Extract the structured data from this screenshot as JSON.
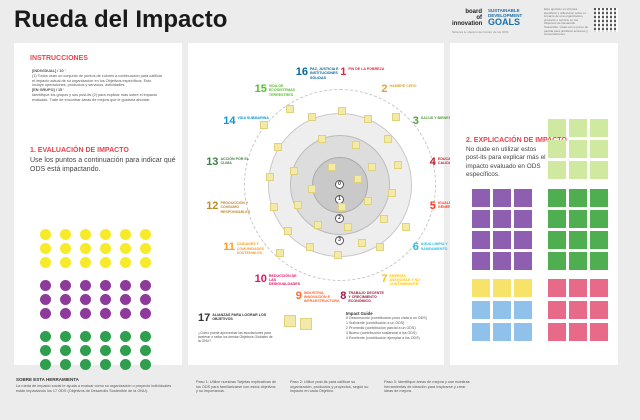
{
  "header": {
    "title": "Rueda del Impacto",
    "logo_board": [
      "board",
      "of",
      "innovation"
    ],
    "logo_sdg": [
      "SUSTAINABLE",
      "DEVELOPMENT",
      "GOALS"
    ],
    "caption": "Sintonía tu objetivo del Centro de los ODS",
    "description": "Este ejercicio es útil para identificar y reflexionar sobre el impacto de una organización, producto o servicio en los Objetivos de Desarrollo Sostenible. Úsalo como punto de partida para planificar acciones y conversaciones."
  },
  "left": {
    "instructions_title": "INSTRUCCIONES",
    "individual_label": "[INDIVIDUAL] / 10 '",
    "individual_text": "(1) Todos usan un conjunto de puntos de colores a continuación para calificar el impacto actual de su organización en los Objetivos específicos. Esto incluye operaciones, productos y servicios, actividades.",
    "group_label": "[EN GRUPO] / 15 '",
    "group_text": "Identifique los grupos y sus post-its (2) para explicar más sobre el impacto evaluado. Trate de encontrar áreas de mejora que le gustaría abordar.",
    "eval_title": "1. EVALUACIÓN DE IMPACTO",
    "eval_text": "Use los puntos a continuación para indicar qué ODS está impactando.",
    "dots": [
      {
        "color": "#f7ea2b",
        "rows": 3
      },
      {
        "color": "#8e3a9c",
        "rows": 3
      },
      {
        "color": "#2f9e4f",
        "rows": 3
      }
    ]
  },
  "wheel": {
    "sdgs": [
      {
        "n": "1",
        "label": "FIN DE LA POBREZA",
        "color": "#e5243b"
      },
      {
        "n": "2",
        "label": "HAMBRE CERO",
        "color": "#dda63a"
      },
      {
        "n": "3",
        "label": "SALUD Y BIENESTAR",
        "color": "#4c9f38"
      },
      {
        "n": "4",
        "label": "EDUCACIÓN DE CALIDAD",
        "color": "#c5192d"
      },
      {
        "n": "5",
        "label": "IGUALDAD DE GÉNERO",
        "color": "#ff3a21"
      },
      {
        "n": "6",
        "label": "AGUA LIMPIA Y SANEAMIENTO",
        "color": "#26bde2"
      },
      {
        "n": "7",
        "label": "ENERGÍA ASEQUIBLE Y NO CONTAMINANTE",
        "color": "#fcc30b"
      },
      {
        "n": "8",
        "label": "TRABAJO DECENTE Y CRECIMIENTO ECONÓMICO",
        "color": "#a21942"
      },
      {
        "n": "9",
        "label": "INDUSTRIA, INNOVACIÓN E INFRAESTRUCTURA",
        "color": "#fd6925"
      },
      {
        "n": "10",
        "label": "REDUCCIÓN DE LAS DESIGUALDADES",
        "color": "#dd1367"
      },
      {
        "n": "11",
        "label": "CIUDADES Y COMUNIDADES SOSTENIBLES",
        "color": "#fd9d24"
      },
      {
        "n": "12",
        "label": "PRODUCCIÓN Y CONSUMO RESPONSABLES",
        "color": "#bf8b2e"
      },
      {
        "n": "13",
        "label": "ACCIÓN POR EL CLIMA",
        "color": "#3f7e44"
      },
      {
        "n": "14",
        "label": "VIDA SUBMARINA",
        "color": "#0a97d9"
      },
      {
        "n": "15",
        "label": "VIDA DE ECOSISTEMAS TERRESTRES",
        "color": "#56c02b"
      },
      {
        "n": "16",
        "label": "PAZ, JUSTICIA E INSTITUCIONES SÓLIDAS",
        "color": "#00689d"
      }
    ],
    "sdg17": {
      "n": "17",
      "label": "ALIANZAS PARA LOGRAR LOS OBJETIVOS",
      "color": "#19486a",
      "note": "¿Cómo puede aprovechar las asociaciones para acelerar o sellar los demás Objetivos Globales de la ONU?"
    },
    "levels": [
      "0",
      "1",
      "2",
      "3"
    ],
    "guide_title": "Impact Guide",
    "guide": [
      "0 Desconocido (contribución poco clara a un ODS)",
      "1 Suficiente (contribución a un ODS)",
      "2 Promedio (contribución parcial a un ODS)",
      "3 Bueno (contribución sustancial a los ODS)",
      "4 Excelente (contribución ejemplar a los ODS)"
    ]
  },
  "right": {
    "explain_title": "2. EXPLICACIÓN DE IMPACTO",
    "explain_text": "No dude en utilizar estos post-its para explicar más el impacto evaluado en ODS específicos.",
    "notes": [
      {
        "color": "#cfe9a0",
        "rows": 2
      },
      {
        "color": "#8e5fb0",
        "rows": 3
      },
      {
        "color": "#4fae4f",
        "rows": 2
      },
      {
        "color": "#e76b88",
        "rows": 2
      },
      {
        "color": "#f7e36a",
        "rows": 1
      },
      {
        "color": "#8fc1ea",
        "rows": 1
      }
    ]
  },
  "footer": {
    "about_title": "SOBRE ESTA HERRAMIENTA",
    "about_text": "La rueda de impacto social le ayuda a evaluar cómo su organización o proyecto individuales están impactando los 17 ODS (Objetivos de Desarrollo Sostenible de la ONU).",
    "step1": "Paso 1: Utilice nuestras Tarjetas explicativas de los ODS para familiarizarse con estos objetivos y su importancia.",
    "step2": "Paso 2: Utilice post-its para calificar su organización, productos y proyectos, según su impacto en cada Objetivo.",
    "step3": "Paso 3: Identifique áreas de mejora y use nuestras herramientas de ideación para inspirarse y crear ideas de mejora."
  }
}
